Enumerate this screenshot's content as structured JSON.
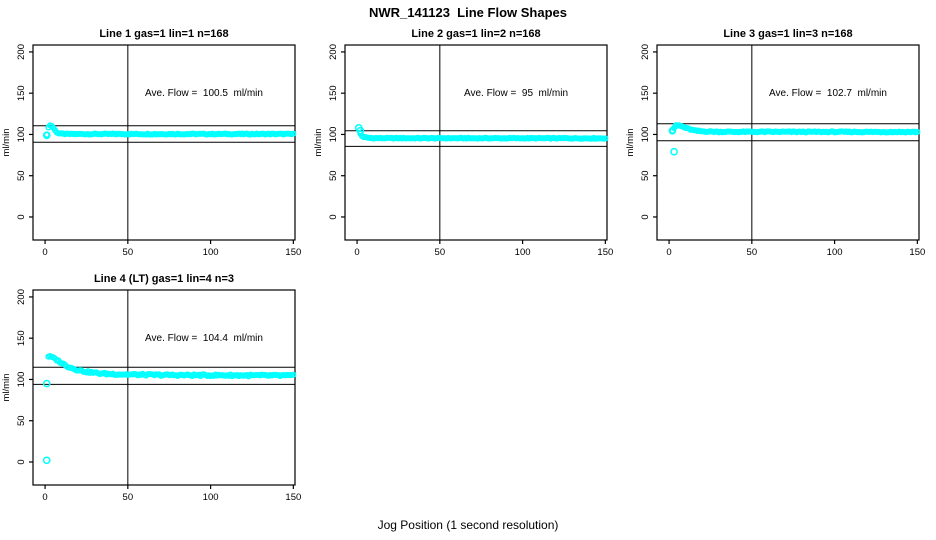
{
  "header": {
    "title": "NWR_141123  Line Flow Shapes"
  },
  "footer": {
    "xlabel": "Jog Position (1 second resolution)"
  },
  "colors": {
    "points": "#00ffff",
    "axis": "#000000",
    "background": "#ffffff"
  },
  "chart_data": {
    "type": "scatter",
    "title": "NWR_141123  Line Flow Shapes",
    "xlabel": "Jog Position (1 second resolution)",
    "ylabel": "ml/min",
    "grid": false,
    "legend": "none",
    "point_color": "#00ffff",
    "xlim": [
      -7.3,
      151.0
    ],
    "ylim": [
      -27.9,
      208.4
    ],
    "xticks": [
      0,
      50,
      100,
      150
    ],
    "yticks": [
      0,
      50,
      100,
      150,
      200
    ],
    "vline_x": 50,
    "panels": [
      {
        "title": "Line 1 gas=1 lin=1 n=168",
        "annotation": "Ave. Flow =  100.5  ml/min",
        "ave_flow_ml_min": 100.5,
        "n_points": 168,
        "ref_lines": [
          110.6,
          90.5
        ],
        "band_anchors": [
          [
            1,
            99
          ],
          [
            2,
            109
          ],
          [
            3,
            111
          ],
          [
            4,
            110.5
          ],
          [
            5,
            108
          ],
          [
            6,
            105
          ],
          [
            7,
            103
          ],
          [
            8,
            101.5
          ],
          [
            10,
            100.8
          ],
          [
            14,
            100.5
          ],
          [
            150,
            100.5
          ]
        ],
        "band_jitter": 0.6,
        "lead_points": [
          [
            1,
            99
          ]
        ],
        "outliers": []
      },
      {
        "title": "Line 2 gas=1 lin=2 n=168",
        "annotation": "Ave. Flow =  95  ml/min",
        "ave_flow_ml_min": 95,
        "n_points": 168,
        "ref_lines": [
          104.5,
          85.5
        ],
        "band_anchors": [
          [
            2,
            101
          ],
          [
            3,
            98
          ],
          [
            4,
            97
          ],
          [
            6,
            96
          ],
          [
            10,
            95.5
          ],
          [
            150,
            95.3
          ]
        ],
        "band_jitter": 0.5,
        "lead_points": [
          [
            1,
            108
          ],
          [
            2,
            104.5
          ]
        ],
        "outliers": []
      },
      {
        "title": "Line 3 gas=1 lin=3 n=168",
        "annotation": "Ave. Flow =  102.7  ml/min",
        "ave_flow_ml_min": 102.7,
        "n_points": 168,
        "ref_lines": [
          113.0,
          92.4
        ],
        "band_anchors": [
          [
            2,
            104.5
          ],
          [
            3,
            108
          ],
          [
            4,
            110.5
          ],
          [
            6,
            111
          ],
          [
            8,
            109.5
          ],
          [
            10,
            108
          ],
          [
            13,
            106
          ],
          [
            16,
            104.5
          ],
          [
            20,
            103.8
          ],
          [
            30,
            103.2
          ],
          [
            150,
            103
          ]
        ],
        "band_jitter": 0.6,
        "lead_points": [
          [
            2,
            104.5
          ]
        ],
        "outliers": [
          [
            3,
            79
          ]
        ]
      },
      {
        "title": "Line 4 (LT) gas=1 lin=4 n=3",
        "annotation": "Ave. Flow =  104.4  ml/min",
        "ave_flow_ml_min": 104.4,
        "n_points": 3,
        "ref_lines": [
          114.8,
          94.0
        ],
        "band_anchors": [
          [
            2,
            128
          ],
          [
            3,
            127.5
          ],
          [
            4,
            127
          ],
          [
            5,
            126
          ],
          [
            6,
            125
          ],
          [
            8,
            122.5
          ],
          [
            10,
            120
          ],
          [
            12,
            117.5
          ],
          [
            14,
            115.5
          ],
          [
            16,
            114
          ],
          [
            18,
            112.5
          ],
          [
            20,
            111.5
          ],
          [
            23,
            110
          ],
          [
            26,
            109
          ],
          [
            30,
            108
          ],
          [
            35,
            107
          ],
          [
            42,
            106.5
          ],
          [
            50,
            106
          ],
          [
            65,
            105.5
          ],
          [
            85,
            105.2
          ],
          [
            110,
            105
          ],
          [
            150,
            104.6
          ]
        ],
        "band_jitter": 1.1,
        "lead_points": [
          [
            1,
            95
          ],
          [
            1,
            2
          ]
        ],
        "outliers": []
      }
    ]
  }
}
